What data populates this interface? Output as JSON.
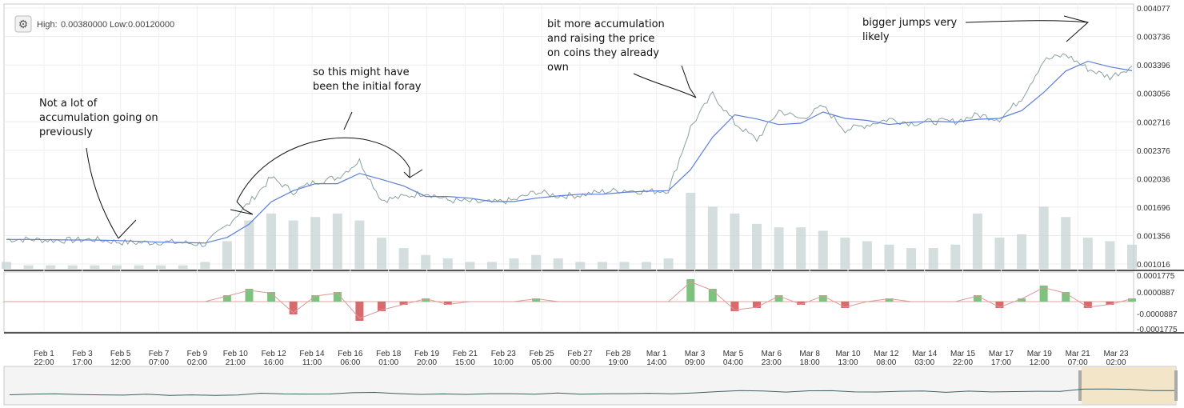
{
  "chart_data": {
    "type": "line",
    "title": "",
    "header": {
      "high_label": "High:",
      "high": "0.00380000",
      "low_label": "Low:",
      "low": "0.00120000"
    },
    "ylim": [
      0.001016,
      0.004077
    ],
    "price_ticks": [
      "0.004077",
      "0.003736",
      "0.003396",
      "0.003056",
      "0.002716",
      "0.002376",
      "0.002036",
      "0.001696",
      "0.001356",
      "0.001016"
    ],
    "macd_ticks": [
      "0.0001775",
      "0.0000887",
      "-0.0000887",
      "-0.0001775"
    ],
    "x_ticks": [
      {
        "date": "Feb 1",
        "time": "22:00"
      },
      {
        "date": "Feb 3",
        "time": "17:00"
      },
      {
        "date": "Feb 5",
        "time": "12:00"
      },
      {
        "date": "Feb 7",
        "time": "07:00"
      },
      {
        "date": "Feb 9",
        "time": "02:00"
      },
      {
        "date": "Feb 10",
        "time": "21:00"
      },
      {
        "date": "Feb 12",
        "time": "16:00"
      },
      {
        "date": "Feb 14",
        "time": "11:00"
      },
      {
        "date": "Feb 16",
        "time": "06:00"
      },
      {
        "date": "Feb 18",
        "time": "01:00"
      },
      {
        "date": "Feb 19",
        "time": "20:00"
      },
      {
        "date": "Feb 21",
        "time": "15:00"
      },
      {
        "date": "Feb 23",
        "time": "10:00"
      },
      {
        "date": "Feb 25",
        "time": "05:00"
      },
      {
        "date": "Feb 27",
        "time": "00:00"
      },
      {
        "date": "Feb 28",
        "time": "19:00"
      },
      {
        "date": "Mar 1",
        "time": "14:00"
      },
      {
        "date": "Mar 3",
        "time": "09:00"
      },
      {
        "date": "Mar 5",
        "time": "04:00"
      },
      {
        "date": "Mar 6",
        "time": "23:00"
      },
      {
        "date": "Mar 8",
        "time": "18:00"
      },
      {
        "date": "Mar 10",
        "time": "13:00"
      },
      {
        "date": "Mar 12",
        "time": "08:00"
      },
      {
        "date": "Mar 14",
        "time": "03:00"
      },
      {
        "date": "Mar 15",
        "time": "22:00"
      },
      {
        "date": "Mar 17",
        "time": "17:00"
      },
      {
        "date": "Mar 19",
        "time": "12:00"
      },
      {
        "date": "Mar 21",
        "time": "07:00"
      },
      {
        "date": "Mar 23",
        "time": "02:00"
      }
    ],
    "price": [
      [
        "Feb 1",
        0.00131
      ],
      [
        "Feb 2",
        0.00131
      ],
      [
        "Feb 3",
        0.0013
      ],
      [
        "Feb 4",
        0.0013
      ],
      [
        "Feb 5",
        0.00131
      ],
      [
        "Feb 6",
        0.00128
      ],
      [
        "Feb 7",
        0.00127
      ],
      [
        "Feb 8",
        0.00128
      ],
      [
        "Feb 9",
        0.00127
      ],
      [
        "Feb 10",
        0.00125
      ],
      [
        "Feb 11",
        0.00148
      ],
      [
        "Feb 12",
        0.00175
      ],
      [
        "Feb 13",
        0.00205
      ],
      [
        "Feb 14",
        0.00188
      ],
      [
        "Feb 15",
        0.002
      ],
      [
        "Feb 16",
        0.00205
      ],
      [
        "Feb 17",
        0.00225
      ],
      [
        "Feb 18",
        0.00178
      ],
      [
        "Feb 19",
        0.00182
      ],
      [
        "Feb 20",
        0.00187
      ],
      [
        "Feb 21",
        0.00178
      ],
      [
        "Feb 22",
        0.00176
      ],
      [
        "Feb 23",
        0.00175
      ],
      [
        "Feb 24",
        0.00178
      ],
      [
        "Feb 25",
        0.00188
      ],
      [
        "Feb 26",
        0.00183
      ],
      [
        "Feb 27",
        0.00184
      ],
      [
        "Feb 28",
        0.00188
      ],
      [
        "Mar 1",
        0.0019
      ],
      [
        "Mar 2",
        0.00188
      ],
      [
        "Mar 3",
        0.0019
      ],
      [
        "Mar 4",
        0.00265
      ],
      [
        "Mar 5",
        0.00305
      ],
      [
        "Mar 6",
        0.0027
      ],
      [
        "Mar 7",
        0.0025
      ],
      [
        "Mar 8",
        0.00285
      ],
      [
        "Mar 9",
        0.00275
      ],
      [
        "Mar 10",
        0.0029
      ],
      [
        "Mar 11",
        0.00262
      ],
      [
        "Mar 12",
        0.00268
      ],
      [
        "Mar 13",
        0.00275
      ],
      [
        "Mar 14",
        0.0027
      ],
      [
        "Mar 15",
        0.00272
      ],
      [
        "Mar 16",
        0.00272
      ],
      [
        "Mar 17",
        0.0028
      ],
      [
        "Mar 18",
        0.00275
      ],
      [
        "Mar 19",
        0.003
      ],
      [
        "Mar 20",
        0.00345
      ],
      [
        "Mar 21",
        0.00352
      ],
      [
        "Mar 22",
        0.00335
      ],
      [
        "Mar 23",
        0.00325
      ],
      [
        "Mar 24",
        0.00338
      ]
    ],
    "volume": [
      2,
      1,
      1,
      1,
      1,
      1,
      1,
      1,
      1,
      2,
      8,
      14,
      16,
      14,
      15,
      16,
      14,
      9,
      6,
      4,
      3,
      2,
      2,
      3,
      4,
      3,
      2,
      2,
      2,
      2,
      3,
      22,
      18,
      16,
      13,
      12,
      12,
      11,
      9,
      8,
      7,
      6,
      6,
      7,
      16,
      9,
      10,
      18,
      15,
      9,
      8,
      7
    ],
    "macd": [
      0,
      0,
      0,
      0,
      0,
      0,
      0,
      0,
      0,
      0,
      2,
      4,
      3,
      -4,
      2,
      3,
      -6,
      -3,
      -1,
      1,
      -1,
      0,
      0,
      0,
      1,
      0,
      0,
      0,
      0,
      0,
      0,
      7,
      4,
      -3,
      -2,
      2,
      -1,
      2,
      -2,
      0,
      1,
      0,
      0,
      0,
      2,
      -2,
      1,
      5,
      3,
      -2,
      -1,
      1
    ],
    "annotations": [
      {
        "lines": [
          "Not a lot of",
          "accumulation going on",
          "previously"
        ]
      },
      {
        "lines": [
          "so this might have",
          "been the initial foray"
        ]
      },
      {
        "lines": [
          "bit more accumulation",
          "and raising the price",
          "on coins they already",
          "own"
        ]
      },
      {
        "lines": [
          "bigger jumps very",
          "likely"
        ]
      }
    ]
  }
}
